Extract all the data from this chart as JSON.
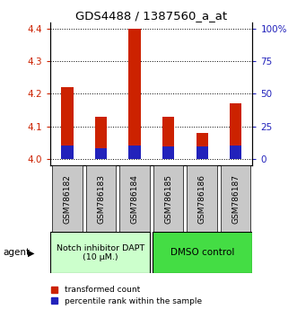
{
  "title": "GDS4488 / 1387560_a_at",
  "categories": [
    "GSM786182",
    "GSM786183",
    "GSM786184",
    "GSM786185",
    "GSM786186",
    "GSM786187"
  ],
  "red_values": [
    4.22,
    4.13,
    4.4,
    4.13,
    4.08,
    4.17
  ],
  "blue_values_pct": [
    5.5,
    3.5,
    5.5,
    4.5,
    4.5,
    5.5
  ],
  "ylim_left": [
    3.98,
    4.42
  ],
  "ylim_right": [
    -5,
    105
  ],
  "yticks_left": [
    4.0,
    4.1,
    4.2,
    4.3,
    4.4
  ],
  "yticks_right": [
    0,
    25,
    50,
    75,
    100
  ],
  "ytick_labels_right": [
    "0",
    "25",
    "50",
    "75",
    "100%"
  ],
  "bar_width": 0.35,
  "red_color": "#CC2200",
  "blue_color": "#2222BB",
  "group1_label": "Notch inhibitor DAPT\n(10 μM.)",
  "group2_label": "DMSO control",
  "legend_red": "transformed count",
  "legend_blue": "percentile rank within the sample",
  "agent_label": "agent",
  "group_bg1": "#CCFFCC",
  "group_bg2": "#44DD44",
  "base_value": 4.0,
  "bg_color": "#FFFFFF"
}
